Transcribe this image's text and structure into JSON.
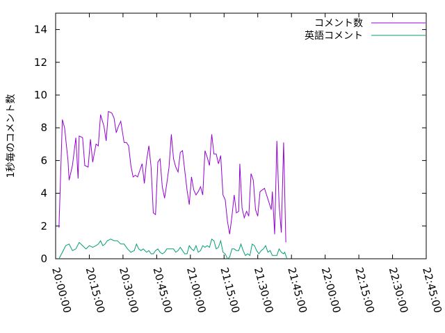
{
  "chart_data": {
    "type": "line",
    "title": "",
    "xlabel": "",
    "ylabel": "1秒毎のコメント数",
    "xlim": [
      "20:00:00",
      "22:45:00"
    ],
    "ylim": [
      0,
      15
    ],
    "grid": false,
    "legend_position": "top-right",
    "x_ticks": [
      "20:00:00",
      "20:15:00",
      "20:30:00",
      "20:45:00",
      "21:00:00",
      "21:15:00",
      "21:30:00",
      "21:45:00",
      "22:00:00",
      "22:15:00",
      "22:30:00",
      "22:45:00"
    ],
    "y_ticks": [
      0,
      2,
      4,
      6,
      8,
      10,
      12,
      14
    ],
    "series": [
      {
        "name": "コメント数",
        "color": "#9400d3",
        "points": [
          [
            "20:01:30",
            1.9
          ],
          [
            "20:03:00",
            8.5
          ],
          [
            "20:04:00",
            8.0
          ],
          [
            "20:05:30",
            6.0
          ],
          [
            "20:06:00",
            4.8
          ],
          [
            "20:07:30",
            5.7
          ],
          [
            "20:09:00",
            7.4
          ],
          [
            "20:10:00",
            4.9
          ],
          [
            "20:10:30",
            7.5
          ],
          [
            "20:12:00",
            7.4
          ],
          [
            "20:13:00",
            5.7
          ],
          [
            "20:14:30",
            5.6
          ],
          [
            "20:15:30",
            7.3
          ],
          [
            "20:16:30",
            5.9
          ],
          [
            "20:18:00",
            7.0
          ],
          [
            "20:19:00",
            6.9
          ],
          [
            "20:20:00",
            8.8
          ],
          [
            "20:21:30",
            8.1
          ],
          [
            "20:22:30",
            7.2
          ],
          [
            "20:23:30",
            9.0
          ],
          [
            "20:25:00",
            8.9
          ],
          [
            "20:26:00",
            8.6
          ],
          [
            "20:27:00",
            7.7
          ],
          [
            "20:28:00",
            8.1
          ],
          [
            "20:29:00",
            8.4
          ],
          [
            "20:30:30",
            7.1
          ],
          [
            "20:31:30",
            7.1
          ],
          [
            "20:32:30",
            6.9
          ],
          [
            "20:33:30",
            5.7
          ],
          [
            "20:34:30",
            5.0
          ],
          [
            "20:35:30",
            5.1
          ],
          [
            "20:36:30",
            5.0
          ],
          [
            "20:37:30",
            5.4
          ],
          [
            "20:38:30",
            5.8
          ],
          [
            "20:39:30",
            4.6
          ],
          [
            "20:40:30",
            6.0
          ],
          [
            "20:41:30",
            6.9
          ],
          [
            "20:42:30",
            5.6
          ],
          [
            "20:43:30",
            2.8
          ],
          [
            "20:44:30",
            2.7
          ],
          [
            "20:45:30",
            5.9
          ],
          [
            "20:46:30",
            6.1
          ],
          [
            "20:47:30",
            4.4
          ],
          [
            "20:48:30",
            3.7
          ],
          [
            "20:49:30",
            4.6
          ],
          [
            "20:50:30",
            5.6
          ],
          [
            "20:51:30",
            7.6
          ],
          [
            "20:52:30",
            6.1
          ],
          [
            "20:53:30",
            5.6
          ],
          [
            "20:54:30",
            5.3
          ],
          [
            "20:55:30",
            6.5
          ],
          [
            "20:56:30",
            6.6
          ],
          [
            "20:57:30",
            5.4
          ],
          [
            "20:58:30",
            4.2
          ],
          [
            "20:59:30",
            3.3
          ],
          [
            "21:00:30",
            5.0
          ],
          [
            "21:01:30",
            4.2
          ],
          [
            "21:02:30",
            3.9
          ],
          [
            "21:03:30",
            4.1
          ],
          [
            "21:04:30",
            4.4
          ],
          [
            "21:05:30",
            3.9
          ],
          [
            "21:06:30",
            6.6
          ],
          [
            "21:07:30",
            6.2
          ],
          [
            "21:08:30",
            5.7
          ],
          [
            "21:09:30",
            7.6
          ],
          [
            "21:10:30",
            6.4
          ],
          [
            "21:11:30",
            6.4
          ],
          [
            "21:12:30",
            5.8
          ],
          [
            "21:13:30",
            6.3
          ],
          [
            "21:14:30",
            3.9
          ],
          [
            "21:15:30",
            3.6
          ],
          [
            "21:16:30",
            2.3
          ],
          [
            "21:17:30",
            1.5
          ],
          [
            "21:18:30",
            2.6
          ],
          [
            "21:19:30",
            3.9
          ],
          [
            "21:20:30",
            2.8
          ],
          [
            "21:21:30",
            2.9
          ],
          [
            "21:22:00",
            5.8
          ],
          [
            "21:23:00",
            3.1
          ],
          [
            "21:24:00",
            2.5
          ],
          [
            "21:25:00",
            2.9
          ],
          [
            "21:26:00",
            2.6
          ],
          [
            "21:27:00",
            5.2
          ],
          [
            "21:28:00",
            4.8
          ],
          [
            "21:29:00",
            3.0
          ],
          [
            "21:30:00",
            2.6
          ],
          [
            "21:31:00",
            4.1
          ],
          [
            "21:33:00",
            4.3
          ],
          [
            "21:36:00",
            3.0
          ],
          [
            "21:36:30",
            4.1
          ],
          [
            "21:37:30",
            1.5
          ],
          [
            "21:38:30",
            7.2
          ],
          [
            "21:39:30",
            3.3
          ],
          [
            "21:40:30",
            1.6
          ],
          [
            "21:41:30",
            7.1
          ],
          [
            "21:42:30",
            1.0
          ]
        ]
      },
      {
        "name": "英語コメント",
        "color": "#009e73",
        "points": [
          [
            "20:01:30",
            0.0
          ],
          [
            "20:03:00",
            0.4
          ],
          [
            "20:04:30",
            0.8
          ],
          [
            "20:06:00",
            0.9
          ],
          [
            "20:07:30",
            0.5
          ],
          [
            "20:09:00",
            0.6
          ],
          [
            "20:10:30",
            1.0
          ],
          [
            "20:12:00",
            0.8
          ],
          [
            "20:13:30",
            0.6
          ],
          [
            "20:15:00",
            0.8
          ],
          [
            "20:16:30",
            0.7
          ],
          [
            "20:18:00",
            0.8
          ],
          [
            "20:19:00",
            0.9
          ],
          [
            "20:20:00",
            1.1
          ],
          [
            "20:21:00",
            0.8
          ],
          [
            "20:22:00",
            0.9
          ],
          [
            "20:23:00",
            1.1
          ],
          [
            "20:24:30",
            1.2
          ],
          [
            "20:26:00",
            1.1
          ],
          [
            "20:27:30",
            1.1
          ],
          [
            "20:29:00",
            0.9
          ],
          [
            "20:30:30",
            0.9
          ],
          [
            "20:32:00",
            0.6
          ],
          [
            "20:33:30",
            0.4
          ],
          [
            "20:35:00",
            0.5
          ],
          [
            "20:36:00",
            0.9
          ],
          [
            "20:37:00",
            0.6
          ],
          [
            "20:38:00",
            0.5
          ],
          [
            "20:39:00",
            0.6
          ],
          [
            "20:40:30",
            0.4
          ],
          [
            "20:41:30",
            0.5
          ],
          [
            "20:42:30",
            0.3
          ],
          [
            "20:43:30",
            0.3
          ],
          [
            "20:44:30",
            0.5
          ],
          [
            "20:45:30",
            0.6
          ],
          [
            "20:46:30",
            0.4
          ],
          [
            "20:47:30",
            0.3
          ],
          [
            "20:48:30",
            0.4
          ],
          [
            "20:49:30",
            0.6
          ],
          [
            "20:51:00",
            0.6
          ],
          [
            "20:52:30",
            0.6
          ],
          [
            "20:53:30",
            0.4
          ],
          [
            "20:54:30",
            0.5
          ],
          [
            "20:55:30",
            0.7
          ],
          [
            "20:56:30",
            0.5
          ],
          [
            "20:57:30",
            0.3
          ],
          [
            "20:58:30",
            0.3
          ],
          [
            "20:59:30",
            0.8
          ],
          [
            "21:00:30",
            0.6
          ],
          [
            "21:01:30",
            0.5
          ],
          [
            "21:02:30",
            0.8
          ],
          [
            "21:03:30",
            0.4
          ],
          [
            "21:04:30",
            0.5
          ],
          [
            "21:05:30",
            0.8
          ],
          [
            "21:06:30",
            0.7
          ],
          [
            "21:07:30",
            0.8
          ],
          [
            "21:08:30",
            0.7
          ],
          [
            "21:09:30",
            1.2
          ],
          [
            "21:10:30",
            1.1
          ],
          [
            "21:11:30",
            0.6
          ],
          [
            "21:12:30",
            0.7
          ],
          [
            "21:13:30",
            1.1
          ],
          [
            "21:14:30",
            0.4
          ],
          [
            "21:15:30",
            0.3
          ],
          [
            "21:16:30",
            0.0
          ],
          [
            "21:17:30",
            0.1
          ],
          [
            "21:18:30",
            0.6
          ],
          [
            "21:19:30",
            0.6
          ],
          [
            "21:20:30",
            0.5
          ],
          [
            "21:21:30",
            0.5
          ],
          [
            "21:22:30",
            0.9
          ],
          [
            "21:23:30",
            0.5
          ],
          [
            "21:24:30",
            0.2
          ],
          [
            "21:25:30",
            0.3
          ],
          [
            "21:26:30",
            0.2
          ],
          [
            "21:27:30",
            0.9
          ],
          [
            "21:28:30",
            0.8
          ],
          [
            "21:29:30",
            0.5
          ],
          [
            "21:30:30",
            0.3
          ],
          [
            "21:31:30",
            0.5
          ],
          [
            "21:32:30",
            0.6
          ],
          [
            "21:33:30",
            0.8
          ],
          [
            "21:34:30",
            0.4
          ],
          [
            "21:35:30",
            0.5
          ],
          [
            "21:36:30",
            0.2
          ],
          [
            "21:37:30",
            0.2
          ],
          [
            "21:38:30",
            0.2
          ],
          [
            "21:39:30",
            0.6
          ],
          [
            "21:40:30",
            0.4
          ],
          [
            "21:41:30",
            0.3
          ],
          [
            "21:42:00",
            0.4
          ],
          [
            "21:43:00",
            0.0
          ]
        ]
      }
    ]
  }
}
